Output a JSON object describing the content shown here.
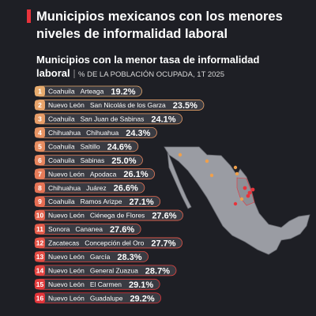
{
  "header": {
    "title_line1": "Municipios mexicanos con los menores",
    "title_line2": "niveles de informalidad laboral",
    "subtitle_line1": "Municipios con la menor tasa de informalidad",
    "subtitle_line2": "laboral",
    "unit": "% DE LA POBLACIÓN OCUPADA, 1T 2025"
  },
  "rows": [
    {
      "rank": "1",
      "state": "Coahuila",
      "municipality": "Arteaga",
      "value": "19.2%"
    },
    {
      "rank": "2",
      "state": "Nuevo León",
      "municipality": "San Nicolás de los Garza",
      "value": "23.5%"
    },
    {
      "rank": "3",
      "state": "Coahuila",
      "municipality": "San Juan de Sabinas",
      "value": "24.1%"
    },
    {
      "rank": "4",
      "state": "Chihuahua",
      "municipality": "Chihuahua",
      "value": "24.3%"
    },
    {
      "rank": "5",
      "state": "Coahuila",
      "municipality": "Saltillo",
      "value": "24.6%"
    },
    {
      "rank": "6",
      "state": "Coahuila",
      "municipality": "Sabinas",
      "value": "25.0%"
    },
    {
      "rank": "7",
      "state": "Nuevo León",
      "municipality": "Apodaca",
      "value": "26.1%"
    },
    {
      "rank": "8",
      "state": "Chihuahua",
      "municipality": "Juárez",
      "value": "26.6%"
    },
    {
      "rank": "9",
      "state": "Coahuila",
      "municipality": "Ramos Arizpe",
      "value": "27.1%"
    },
    {
      "rank": "10",
      "state": "Nuevo León",
      "municipality": "Ciénega de Flores",
      "value": "27.6%"
    },
    {
      "rank": "11",
      "state": "Sonora",
      "municipality": "Cananea",
      "value": "27.6%"
    },
    {
      "rank": "12",
      "state": "Zacatecas",
      "municipality": "Concepción del Oro",
      "value": "27.7%"
    },
    {
      "rank": "13",
      "state": "Nuevo León",
      "municipality": "García",
      "value": "28.3%"
    },
    {
      "rank": "14",
      "state": "Nuevo León",
      "municipality": "General Zuazua",
      "value": "28.7%"
    },
    {
      "rank": "15",
      "state": "Nuevo León",
      "municipality": "El Carmen",
      "value": "29.1%"
    },
    {
      "rank": "16",
      "state": "Nuevo León",
      "municipality": "Guadalupe",
      "value": "29.2%"
    }
  ]
}
